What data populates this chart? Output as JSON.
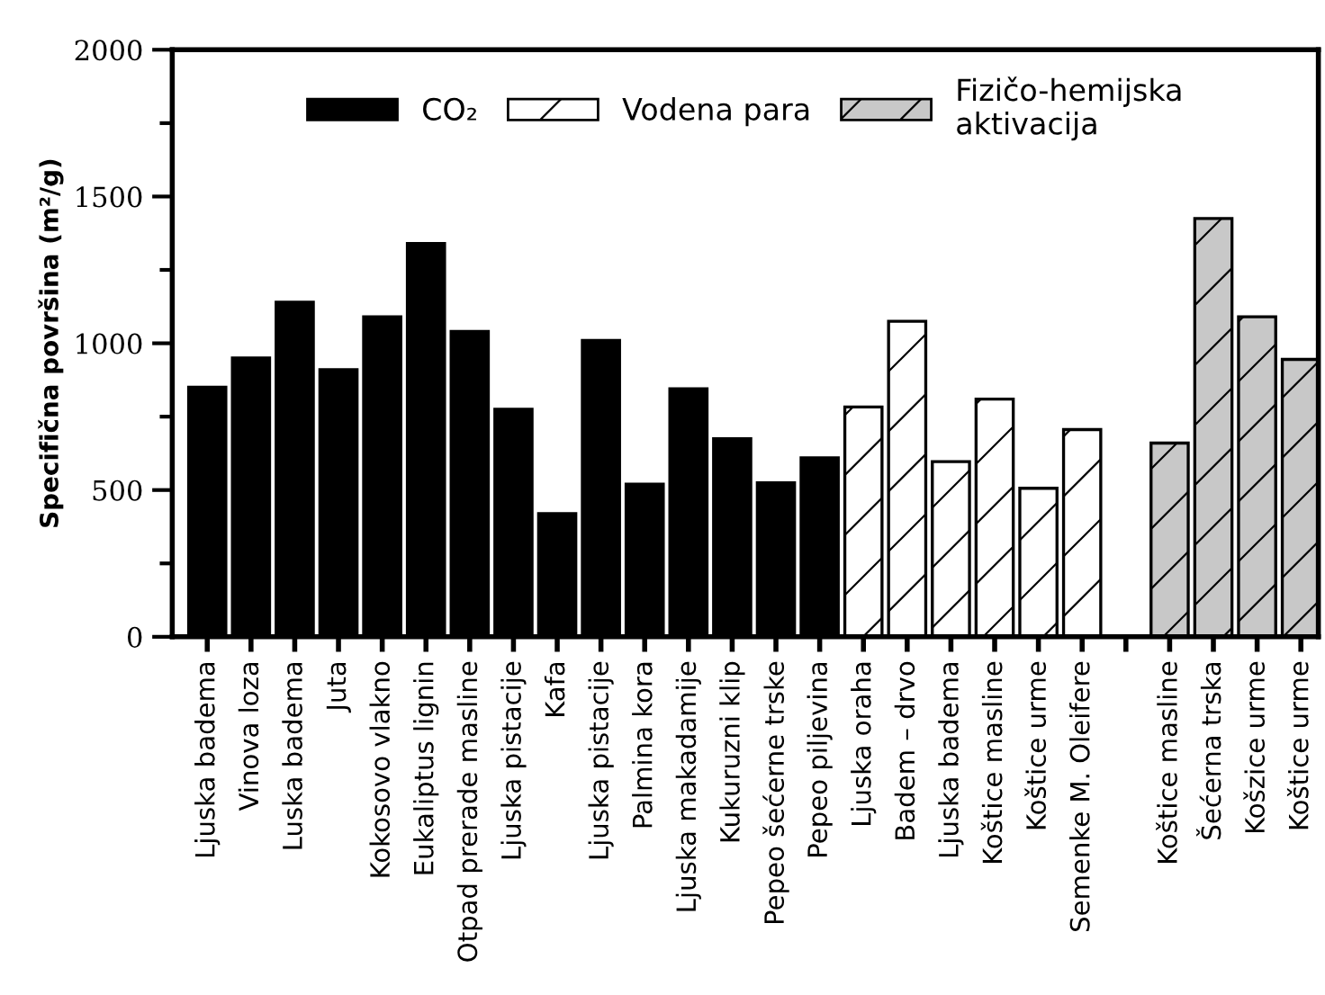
{
  "chart_data": {
    "type": "bar",
    "ylabel": "Specifična površina (m²/g)",
    "categories": [
      "Ljuska badema",
      "Vinova loza",
      "Luska badema",
      "Juta",
      "Kokosovo vlakno",
      "Eukaliptus lignin",
      "Otpad prerade masline",
      "Ljuska pistacije",
      "Kafa",
      "Ljuska pistacije",
      "Palmina kora",
      "Ljuska makadamije",
      "Kukuruzni klip",
      "Pepeo šećerne trske",
      "Pepeo piljevina",
      "Ljuska oraha",
      "Badem – drvo",
      "Ljuska badema",
      "Koštice masline",
      "Koštice urme",
      "Semenke M. Oleifere",
      null,
      "Koštice masline",
      "Šećerna trska",
      "Košzice urme",
      "Koštice urme"
    ],
    "series": [
      {
        "name": "CO₂",
        "color": "#000000",
        "values": [
          850,
          950,
          1140,
          910,
          1090,
          1340,
          1040,
          775,
          420,
          1010,
          520,
          845,
          675,
          525,
          610,
          null,
          null,
          null,
          null,
          null,
          null,
          null,
          null,
          null,
          null,
          null
        ]
      },
      {
        "name": "Vodena para",
        "color": "#ffffff",
        "values": [
          null,
          null,
          null,
          null,
          null,
          null,
          null,
          null,
          null,
          null,
          null,
          null,
          null,
          null,
          null,
          783,
          1075,
          597,
          810,
          506,
          706,
          null,
          null,
          null,
          null,
          null
        ]
      },
      {
        "name": "Fizičo-hemijska\naktivacija",
        "color": "#c8c8c8",
        "values": [
          null,
          null,
          null,
          null,
          null,
          null,
          null,
          null,
          null,
          null,
          null,
          null,
          null,
          null,
          null,
          null,
          null,
          null,
          null,
          null,
          null,
          null,
          660,
          1425,
          1090,
          945
        ]
      }
    ],
    "ylim": [
      0,
      2000
    ],
    "yticks": [
      0,
      500,
      1000,
      1500,
      2000
    ],
    "legend": "top"
  }
}
